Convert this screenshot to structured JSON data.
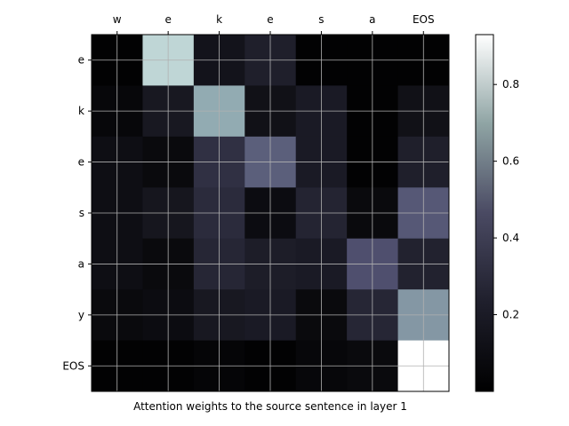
{
  "chart_data": {
    "type": "heatmap",
    "title": "",
    "xlabel": "Attention weights to the source sentence in layer 1",
    "ylabel": "",
    "x_categories": [
      "w",
      "e",
      "k",
      "e",
      "s",
      "a",
      "EOS"
    ],
    "y_categories": [
      "e",
      "k",
      "e",
      "s",
      "a",
      "y",
      "EOS"
    ],
    "values": [
      [
        0.01,
        0.76,
        0.08,
        0.13,
        0.01,
        0.01,
        0.01
      ],
      [
        0.03,
        0.1,
        0.61,
        0.07,
        0.11,
        0.01,
        0.07
      ],
      [
        0.06,
        0.04,
        0.2,
        0.38,
        0.11,
        0.01,
        0.13
      ],
      [
        0.06,
        0.09,
        0.18,
        0.05,
        0.15,
        0.04,
        0.36
      ],
      [
        0.06,
        0.04,
        0.16,
        0.12,
        0.11,
        0.33,
        0.14
      ],
      [
        0.04,
        0.05,
        0.1,
        0.11,
        0.04,
        0.16,
        0.55
      ],
      [
        0.01,
        0.01,
        0.02,
        0.01,
        0.03,
        0.04,
        0.93
      ]
    ],
    "colormap": "bone",
    "color_range": [
      0.0,
      0.93
    ],
    "colorbar_ticks": [
      "0.2",
      "0.4",
      "0.6",
      "0.8"
    ],
    "grid": true,
    "x_ticks_position": "top"
  }
}
